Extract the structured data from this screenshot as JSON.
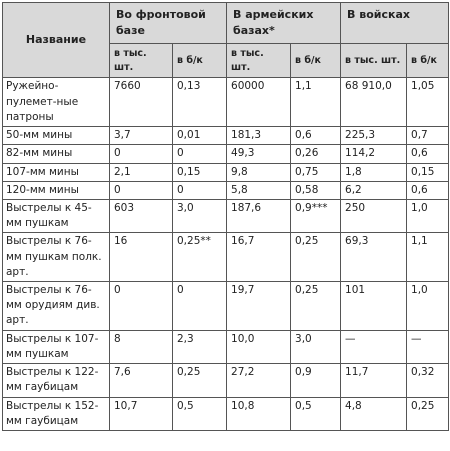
{
  "header": {
    "name": "Название",
    "front": "Во фронтовой базе",
    "army": "В армейских базах*",
    "troops": "В войсках",
    "unit_thousand": "в тыс. шт.",
    "unit_bk": "в б/к"
  },
  "rows": [
    {
      "name": "Ружейно-пулемет-ные патроны",
      "v": [
        "7660",
        "0,13",
        "60000",
        "1,1",
        "68 910,0",
        "1,05"
      ]
    },
    {
      "name": "50-мм мины",
      "v": [
        "3,7",
        "0,01",
        "181,3",
        "0,6",
        "225,3",
        "0,7"
      ]
    },
    {
      "name": "82-мм мины",
      "v": [
        "0",
        "0",
        "49,3",
        "0,26",
        "114,2",
        "0,6"
      ]
    },
    {
      "name": "107-мм мины",
      "v": [
        "2,1",
        "0,15",
        "9,8",
        "0,75",
        "1,8",
        "0,15"
      ]
    },
    {
      "name": "120-мм мины",
      "v": [
        "0",
        "0",
        "5,8",
        "0,58",
        "6,2",
        "0,6"
      ]
    },
    {
      "name": "Выстрелы к 45-мм пушкам",
      "v": [
        "603",
        "3,0",
        "187,6",
        "0,9***",
        "250",
        "1,0"
      ]
    },
    {
      "name": "Выстрелы к 76-мм пушкам полк. арт.",
      "v": [
        "16",
        "0,25**",
        "16,7",
        "0,25",
        "69,3",
        "1,1"
      ]
    },
    {
      "name": "Выстрелы к 76-мм орудиям див. арт.",
      "v": [
        "0",
        "0",
        "19,7",
        "0,25",
        "101",
        "1,0"
      ]
    },
    {
      "name": "Выстрелы к 107-мм пушкам",
      "v": [
        "8",
        "2,3",
        "10,0",
        "3,0",
        "—",
        "—"
      ]
    },
    {
      "name": "Выстрелы к 122-мм гаубицам",
      "v": [
        "7,6",
        "0,25",
        "27,2",
        "0,9",
        "11,7",
        "0,32"
      ]
    },
    {
      "name": "Выстрелы к 152-мм гаубицам",
      "v": [
        "10,7",
        "0,5",
        "10,8",
        "0,5",
        "4,8",
        "0,25"
      ]
    }
  ]
}
